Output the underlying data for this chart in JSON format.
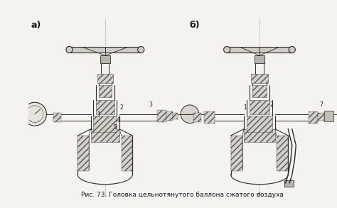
{
  "caption": "Рис. 73. Головка цельнотянутого баллона сжатого воздуха",
  "label_a": "а)",
  "label_b": "б)",
  "bg_color": "#f5f3ef",
  "text_color": "#1a1a1a",
  "caption_fontsize": 6.5,
  "label_fontsize": 9,
  "fig_width": 4.74,
  "fig_height": 2.93,
  "dpi": 100,
  "line_color": "#2a2a2a",
  "hatch_face": "#d4cfc8",
  "hatch_color": "#555555"
}
